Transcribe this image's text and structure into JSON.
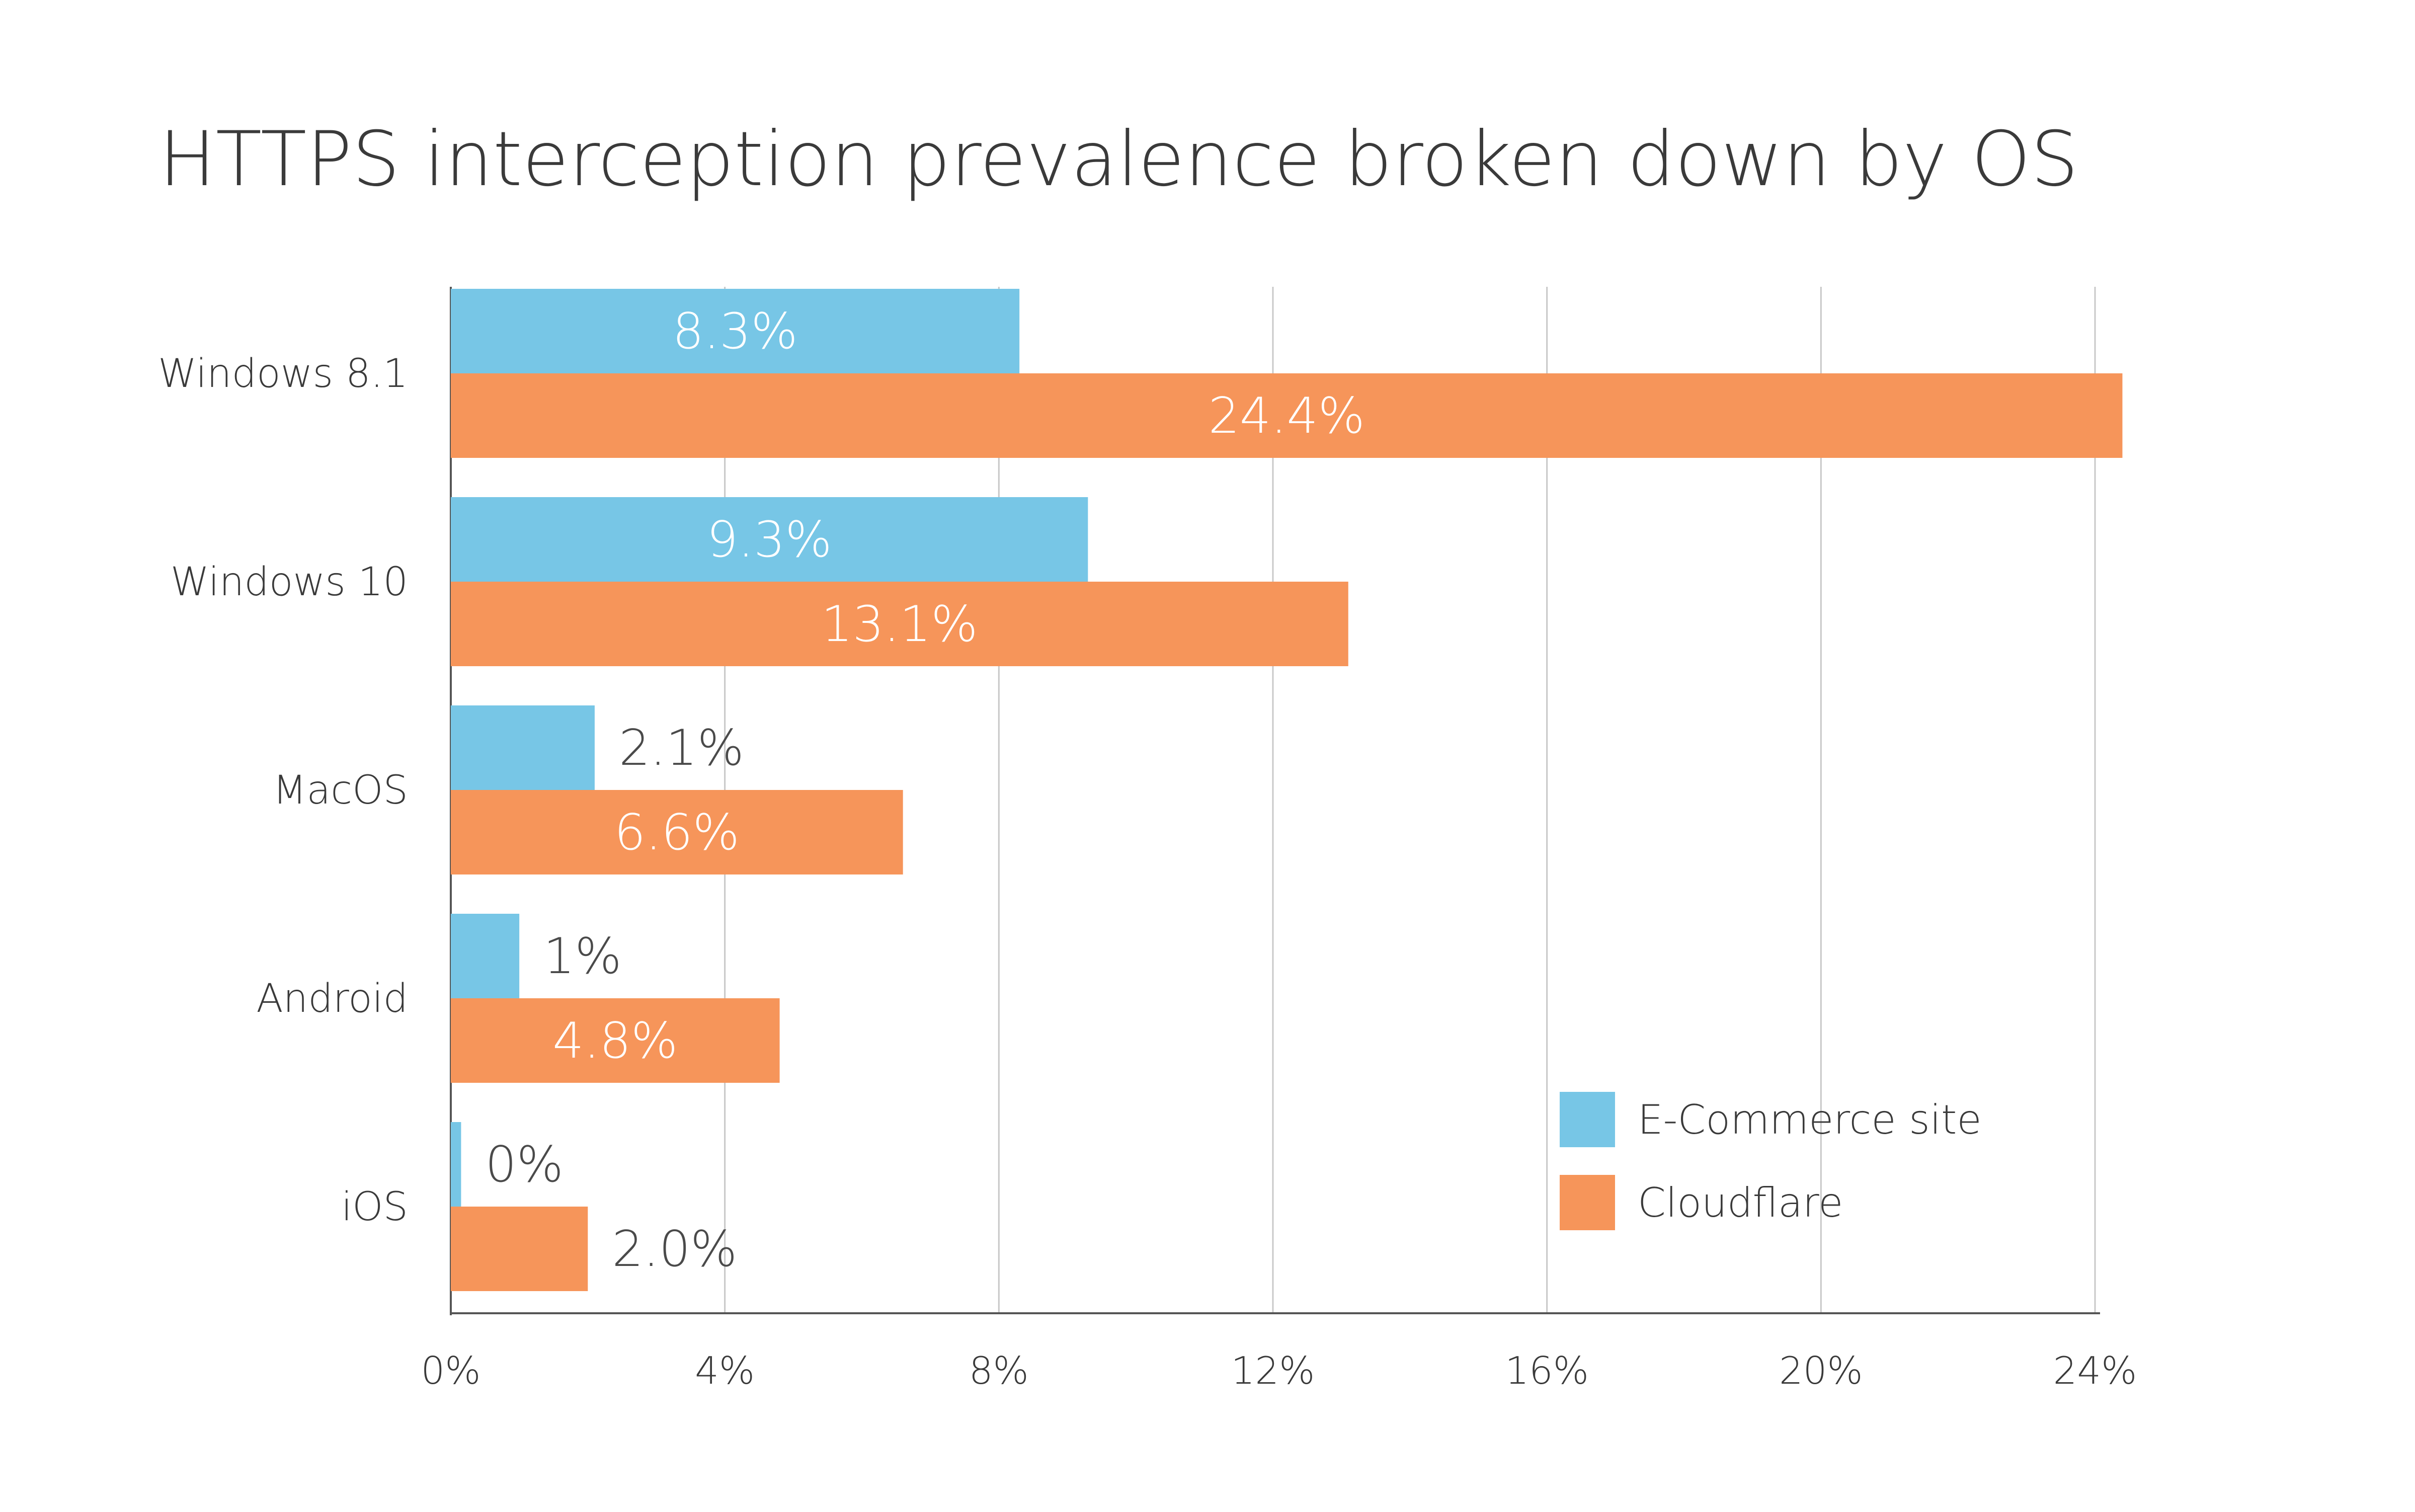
{
  "chart_data": {
    "type": "bar",
    "orientation": "horizontal",
    "title": "HTTPS interception prevalence broken down by OS",
    "xlabel": "",
    "ylabel": "",
    "categories": [
      "Windows 8.1",
      "Windows 10",
      "MacOS",
      "Android",
      "iOS"
    ],
    "series": [
      {
        "name": "E-Commerce site",
        "color": "#77c6e6",
        "values": [
          8.3,
          9.3,
          2.1,
          1,
          0.15
        ],
        "labels": [
          "8.3%",
          "9.3%",
          "2.1%",
          "1%",
          "0%"
        ]
      },
      {
        "name": "Cloudflare",
        "color": "#f6955a",
        "values": [
          24.4,
          13.1,
          6.6,
          4.8,
          2.0
        ],
        "labels": [
          "24.4%",
          "13.1%",
          "6.6%",
          "4.8%",
          "2.0%"
        ]
      }
    ],
    "xlim": [
      0,
      24
    ],
    "xticks": [
      "0%",
      "4%",
      "8%",
      "12%",
      "16%",
      "20%",
      "24%"
    ],
    "grid": "vertical",
    "legend_position": "bottom-right",
    "label_inside_color": "#ffffff",
    "label_outside_color": "#4a4a4a",
    "axis_color": "#555555",
    "grid_color": "#c8c8c8"
  }
}
